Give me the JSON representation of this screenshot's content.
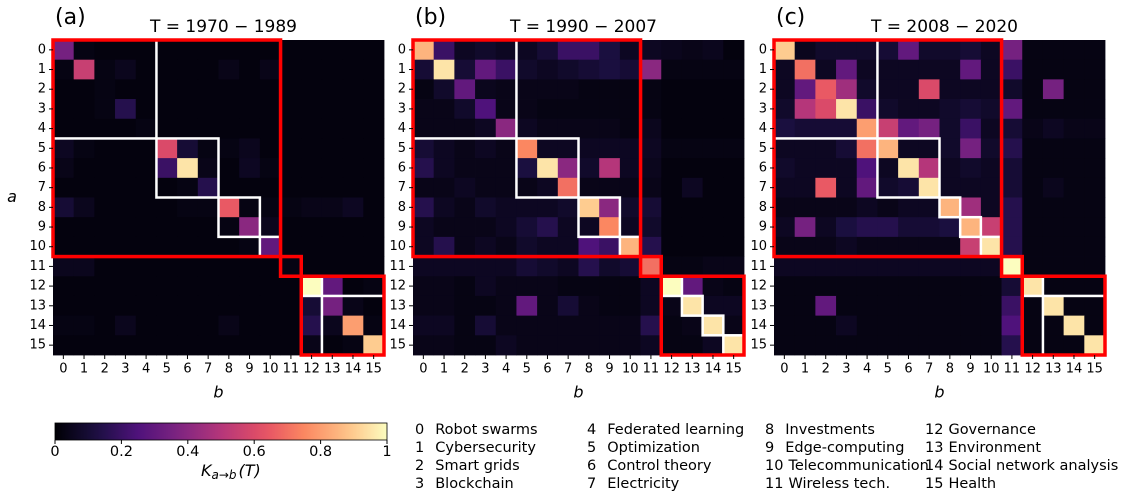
{
  "chart_data": [
    {
      "type": "heatmap",
      "label": "(a)",
      "title": "T = 1970 − 1989",
      "xlabel": "b",
      "ylabel": "a",
      "xticks": [
        0,
        1,
        2,
        3,
        4,
        5,
        6,
        7,
        8,
        9,
        10,
        11,
        12,
        13,
        14,
        15
      ],
      "yticks": [
        0,
        1,
        2,
        3,
        4,
        5,
        6,
        7,
        8,
        9,
        10,
        11,
        12,
        13,
        14,
        15
      ],
      "zlim": [
        0,
        1
      ],
      "colormap": "magma",
      "white_clusters": [
        [
          0,
          4
        ],
        [
          5,
          7
        ],
        [
          8,
          9
        ],
        [
          10,
          10
        ],
        [
          12,
          12
        ],
        [
          13,
          15
        ]
      ],
      "red_clusters": [
        [
          0,
          10
        ],
        [
          11,
          11
        ],
        [
          12,
          15
        ]
      ],
      "z": [
        [
          0.35,
          0.03,
          0.02,
          0.02,
          0.02,
          0.02,
          0.02,
          0.02,
          0.02,
          0.02,
          0.02,
          0.02,
          0.02,
          0.02,
          0.02,
          0.02
        ],
        [
          0.03,
          0.55,
          0.03,
          0.05,
          0.02,
          0.02,
          0.02,
          0.02,
          0.04,
          0.02,
          0.04,
          0.02,
          0.02,
          0.02,
          0.02,
          0.02
        ],
        [
          0.02,
          0.02,
          0.03,
          0.02,
          0.02,
          0.02,
          0.02,
          0.02,
          0.02,
          0.02,
          0.02,
          0.02,
          0.02,
          0.02,
          0.02,
          0.02
        ],
        [
          0.02,
          0.02,
          0.03,
          0.15,
          0.02,
          0.02,
          0.02,
          0.02,
          0.02,
          0.02,
          0.02,
          0.02,
          0.02,
          0.02,
          0.02,
          0.02
        ],
        [
          0.02,
          0.02,
          0.02,
          0.02,
          0.03,
          0.02,
          0.02,
          0.02,
          0.02,
          0.02,
          0.02,
          0.02,
          0.02,
          0.02,
          0.02,
          0.02
        ],
        [
          0.06,
          0.03,
          0.02,
          0.02,
          0.02,
          0.6,
          0.1,
          0.03,
          0.03,
          0.05,
          0.02,
          0.02,
          0.02,
          0.02,
          0.02,
          0.02
        ],
        [
          0.04,
          0.02,
          0.02,
          0.02,
          0.02,
          0.2,
          0.95,
          0.04,
          0.02,
          0.06,
          0.03,
          0.02,
          0.02,
          0.02,
          0.02,
          0.02
        ],
        [
          0.02,
          0.02,
          0.02,
          0.02,
          0.02,
          0.02,
          0.03,
          0.15,
          0.02,
          0.02,
          0.02,
          0.02,
          0.02,
          0.02,
          0.02,
          0.02
        ],
        [
          0.1,
          0.05,
          0.02,
          0.02,
          0.02,
          0.02,
          0.03,
          0.03,
          0.65,
          0.03,
          0.03,
          0.03,
          0.04,
          0.04,
          0.06,
          0.02
        ],
        [
          0.02,
          0.02,
          0.02,
          0.02,
          0.02,
          0.02,
          0.02,
          0.02,
          0.03,
          0.4,
          0.05,
          0.02,
          0.02,
          0.02,
          0.02,
          0.02
        ],
        [
          0.02,
          0.02,
          0.02,
          0.02,
          0.02,
          0.02,
          0.02,
          0.02,
          0.02,
          0.03,
          0.3,
          0.02,
          0.02,
          0.02,
          0.02,
          0.02
        ],
        [
          0.05,
          0.05,
          0.02,
          0.02,
          0.02,
          0.02,
          0.02,
          0.02,
          0.02,
          0.02,
          0.02,
          0.03,
          0.02,
          0.02,
          0.02,
          0.02
        ],
        [
          0.02,
          0.02,
          0.02,
          0.02,
          0.02,
          0.02,
          0.02,
          0.02,
          0.02,
          0.02,
          0.02,
          0.02,
          1,
          0.3,
          0.02,
          0.03
        ],
        [
          0.02,
          0.02,
          0.02,
          0.02,
          0.02,
          0.02,
          0.02,
          0.02,
          0.02,
          0.02,
          0.02,
          0.02,
          0.1,
          0.35,
          0.04,
          0.02
        ],
        [
          0.03,
          0.03,
          0.02,
          0.05,
          0.02,
          0.02,
          0.02,
          0.02,
          0.04,
          0.02,
          0.02,
          0.02,
          0.15,
          0.05,
          0.8,
          0.03
        ],
        [
          0.02,
          0.02,
          0.02,
          0.02,
          0.02,
          0.02,
          0.02,
          0.02,
          0.02,
          0.02,
          0.02,
          0.02,
          0.04,
          0.02,
          0.03,
          0.9
        ]
      ]
    },
    {
      "type": "heatmap",
      "label": "(b)",
      "title": "T = 1990 − 2007",
      "xlabel": "b",
      "xticks": [
        0,
        1,
        2,
        3,
        4,
        5,
        6,
        7,
        8,
        9,
        10,
        11,
        12,
        13,
        14,
        15
      ],
      "yticks": [
        0,
        1,
        2,
        3,
        4,
        5,
        6,
        7,
        8,
        9,
        10,
        11,
        12,
        13,
        14,
        15
      ],
      "zlim": [
        0,
        1
      ],
      "colormap": "magma",
      "white_clusters": [
        [
          0,
          4
        ],
        [
          5,
          7
        ],
        [
          8,
          9
        ],
        [
          10,
          10
        ],
        [
          12,
          12
        ],
        [
          13,
          13
        ],
        [
          14,
          14
        ],
        [
          15,
          15
        ]
      ],
      "red_clusters": [
        [
          0,
          10
        ],
        [
          11,
          11
        ],
        [
          12,
          15
        ]
      ],
      "z": [
        [
          0.85,
          0.2,
          0.06,
          0.08,
          0.06,
          0.06,
          0.1,
          0.2,
          0.2,
          0.12,
          0.06,
          0.06,
          0.05,
          0.04,
          0.05,
          0.02
        ],
        [
          0.1,
          0.95,
          0.1,
          0.3,
          0.2,
          0.08,
          0.06,
          0.08,
          0.1,
          0.12,
          0.1,
          0.4,
          0.03,
          0.03,
          0.03,
          0.03
        ],
        [
          0.03,
          0.08,
          0.3,
          0.05,
          0.04,
          0.04,
          0.04,
          0.04,
          0.03,
          0.03,
          0.03,
          0.03,
          0.02,
          0.02,
          0.02,
          0.02
        ],
        [
          0.04,
          0.04,
          0.08,
          0.25,
          0.04,
          0.04,
          0.03,
          0.03,
          0.03,
          0.03,
          0.03,
          0.03,
          0.02,
          0.02,
          0.02,
          0.02
        ],
        [
          0.04,
          0.04,
          0.04,
          0.06,
          0.4,
          0.06,
          0.04,
          0.04,
          0.04,
          0.04,
          0.03,
          0.05,
          0.02,
          0.02,
          0.02,
          0.02
        ],
        [
          0.1,
          0.06,
          0.04,
          0.06,
          0.04,
          0.75,
          0.06,
          0.06,
          0.06,
          0.06,
          0.06,
          0.06,
          0.03,
          0.03,
          0.03,
          0.03
        ],
        [
          0.15,
          0.06,
          0.04,
          0.04,
          0.04,
          0.12,
          0.95,
          0.4,
          0.08,
          0.5,
          0.06,
          0.05,
          0.02,
          0.02,
          0.02,
          0.02
        ],
        [
          0.04,
          0.04,
          0.06,
          0.04,
          0.04,
          0.04,
          0.06,
          0.7,
          0.04,
          0.04,
          0.04,
          0.04,
          0.02,
          0.06,
          0.02,
          0.02
        ],
        [
          0.15,
          0.06,
          0.04,
          0.08,
          0.06,
          0.06,
          0.06,
          0.08,
          0.9,
          0.4,
          0.08,
          0.1,
          0.02,
          0.02,
          0.02,
          0.02
        ],
        [
          0.06,
          0.04,
          0.04,
          0.04,
          0.06,
          0.1,
          0.15,
          0.06,
          0.06,
          0.75,
          0.06,
          0.08,
          0.02,
          0.02,
          0.02,
          0.02
        ],
        [
          0.06,
          0.15,
          0.04,
          0.06,
          0.04,
          0.08,
          0.06,
          0.06,
          0.25,
          0.2,
          0.85,
          0.15,
          0.02,
          0.02,
          0.02,
          0.02
        ],
        [
          0.06,
          0.06,
          0.06,
          0.06,
          0.06,
          0.1,
          0.08,
          0.06,
          0.15,
          0.08,
          0.1,
          0.7,
          0.03,
          0.03,
          0.04,
          0.04
        ],
        [
          0.04,
          0.04,
          0.03,
          0.06,
          0.04,
          0.04,
          0.04,
          0.03,
          0.03,
          0.03,
          0.03,
          0.06,
          1,
          0.3,
          0.04,
          0.03
        ],
        [
          0.04,
          0.04,
          0.03,
          0.03,
          0.04,
          0.3,
          0.04,
          0.1,
          0.04,
          0.03,
          0.03,
          0.06,
          0.04,
          0.95,
          0.06,
          0.06
        ],
        [
          0.06,
          0.06,
          0.03,
          0.1,
          0.04,
          0.04,
          0.04,
          0.04,
          0.04,
          0.04,
          0.04,
          0.15,
          0.03,
          0.04,
          0.95,
          0.04
        ],
        [
          0.04,
          0.04,
          0.03,
          0.03,
          0.06,
          0.04,
          0.04,
          0.04,
          0.04,
          0.04,
          0.04,
          0.06,
          0.03,
          0.03,
          0.06,
          0.95
        ]
      ]
    },
    {
      "type": "heatmap",
      "label": "(c)",
      "title": "T = 2008 − 2020",
      "xlabel": "b",
      "xticks": [
        0,
        1,
        2,
        3,
        4,
        5,
        6,
        7,
        8,
        9,
        10,
        11,
        12,
        13,
        14,
        15
      ],
      "yticks": [
        0,
        1,
        2,
        3,
        4,
        5,
        6,
        7,
        8,
        9,
        10,
        11,
        12,
        13,
        14,
        15
      ],
      "zlim": [
        0,
        1
      ],
      "colormap": "magma",
      "white_clusters": [
        [
          0,
          4
        ],
        [
          5,
          7
        ],
        [
          8,
          8
        ],
        [
          9,
          9
        ],
        [
          10,
          10
        ],
        [
          12,
          12
        ],
        [
          13,
          15
        ]
      ],
      "red_clusters": [
        [
          0,
          10
        ],
        [
          11,
          11
        ],
        [
          12,
          15
        ]
      ],
      "z": [
        [
          0.9,
          0.05,
          0.08,
          0.08,
          0.08,
          0.1,
          0.3,
          0.08,
          0.08,
          0.1,
          0.06,
          0.35,
          0.03,
          0.03,
          0.03,
          0.03
        ],
        [
          0.06,
          0.7,
          0.06,
          0.3,
          0.06,
          0.06,
          0.06,
          0.06,
          0.06,
          0.3,
          0.06,
          0.2,
          0.03,
          0.03,
          0.03,
          0.03
        ],
        [
          0.06,
          0.3,
          0.65,
          0.45,
          0.08,
          0.06,
          0.06,
          0.6,
          0.06,
          0.06,
          0.06,
          0.08,
          0.03,
          0.35,
          0.03,
          0.03
        ],
        [
          0.08,
          0.5,
          0.6,
          0.95,
          0.2,
          0.08,
          0.06,
          0.06,
          0.08,
          0.1,
          0.08,
          0.3,
          0.03,
          0.03,
          0.03,
          0.03
        ],
        [
          0.12,
          0.1,
          0.1,
          0.1,
          0.8,
          0.55,
          0.3,
          0.35,
          0.08,
          0.2,
          0.06,
          0.1,
          0.04,
          0.06,
          0.04,
          0.04
        ],
        [
          0.06,
          0.06,
          0.06,
          0.1,
          0.7,
          0.85,
          0.06,
          0.06,
          0.08,
          0.35,
          0.08,
          0.15,
          0.03,
          0.03,
          0.03,
          0.03
        ],
        [
          0.08,
          0.06,
          0.06,
          0.06,
          0.25,
          0.06,
          0.95,
          0.5,
          0.06,
          0.08,
          0.06,
          0.1,
          0.03,
          0.03,
          0.03,
          0.03
        ],
        [
          0.06,
          0.06,
          0.65,
          0.06,
          0.3,
          0.08,
          0.1,
          0.95,
          0.06,
          0.06,
          0.06,
          0.1,
          0.03,
          0.05,
          0.03,
          0.03
        ],
        [
          0.04,
          0.04,
          0.04,
          0.04,
          0.06,
          0.04,
          0.06,
          0.06,
          0.85,
          0.45,
          0.06,
          0.15,
          0.03,
          0.03,
          0.03,
          0.03
        ],
        [
          0.06,
          0.35,
          0.06,
          0.12,
          0.15,
          0.15,
          0.1,
          0.1,
          0.12,
          0.85,
          0.55,
          0.15,
          0.03,
          0.03,
          0.03,
          0.03
        ],
        [
          0.04,
          0.04,
          0.04,
          0.06,
          0.04,
          0.04,
          0.04,
          0.04,
          0.04,
          0.55,
          0.95,
          0.15,
          0.03,
          0.03,
          0.03,
          0.03
        ],
        [
          0.06,
          0.06,
          0.06,
          0.06,
          0.06,
          0.06,
          0.06,
          0.06,
          0.06,
          0.06,
          0.06,
          1,
          0.03,
          0.03,
          0.03,
          0.03
        ],
        [
          0.03,
          0.03,
          0.03,
          0.03,
          0.03,
          0.03,
          0.03,
          0.03,
          0.03,
          0.03,
          0.03,
          0.1,
          0.95,
          0.03,
          0.03,
          0.03
        ],
        [
          0.03,
          0.03,
          0.3,
          0.03,
          0.03,
          0.03,
          0.03,
          0.03,
          0.03,
          0.03,
          0.03,
          0.2,
          0.03,
          0.95,
          0.03,
          0.03
        ],
        [
          0.03,
          0.03,
          0.03,
          0.06,
          0.03,
          0.03,
          0.03,
          0.03,
          0.03,
          0.03,
          0.03,
          0.25,
          0.03,
          0.03,
          0.95,
          0.03
        ],
        [
          0.03,
          0.03,
          0.03,
          0.03,
          0.03,
          0.03,
          0.03,
          0.03,
          0.03,
          0.03,
          0.03,
          0.15,
          0.03,
          0.03,
          0.03,
          0.95
        ]
      ]
    }
  ],
  "colorbar": {
    "ticks": [
      0,
      0.2,
      0.4,
      0.6,
      0.8,
      1
    ],
    "lim": [
      0,
      1
    ],
    "label": {
      "main": "K",
      "sub": "a→b",
      "arg": "(T)"
    }
  },
  "legend": [
    {
      "id": "0",
      "name": "Robot swarms"
    },
    {
      "id": "1",
      "name": "Cybersecurity"
    },
    {
      "id": "2",
      "name": "Smart grids"
    },
    {
      "id": "3",
      "name": "Blockchain"
    },
    {
      "id": "4",
      "name": "Federated learning"
    },
    {
      "id": "5",
      "name": "Optimization"
    },
    {
      "id": "6",
      "name": "Control theory"
    },
    {
      "id": "7",
      "name": "Electricity"
    },
    {
      "id": "8",
      "name": "Investments"
    },
    {
      "id": "9",
      "name": "Edge-computing"
    },
    {
      "id": "10",
      "name": "Telecommunication"
    },
    {
      "id": "11",
      "name": "Wireless tech."
    },
    {
      "id": "12",
      "name": "Governance"
    },
    {
      "id": "13",
      "name": "Environment"
    },
    {
      "id": "14",
      "name": "Social network analysis"
    },
    {
      "id": "15",
      "name": "Health"
    }
  ]
}
